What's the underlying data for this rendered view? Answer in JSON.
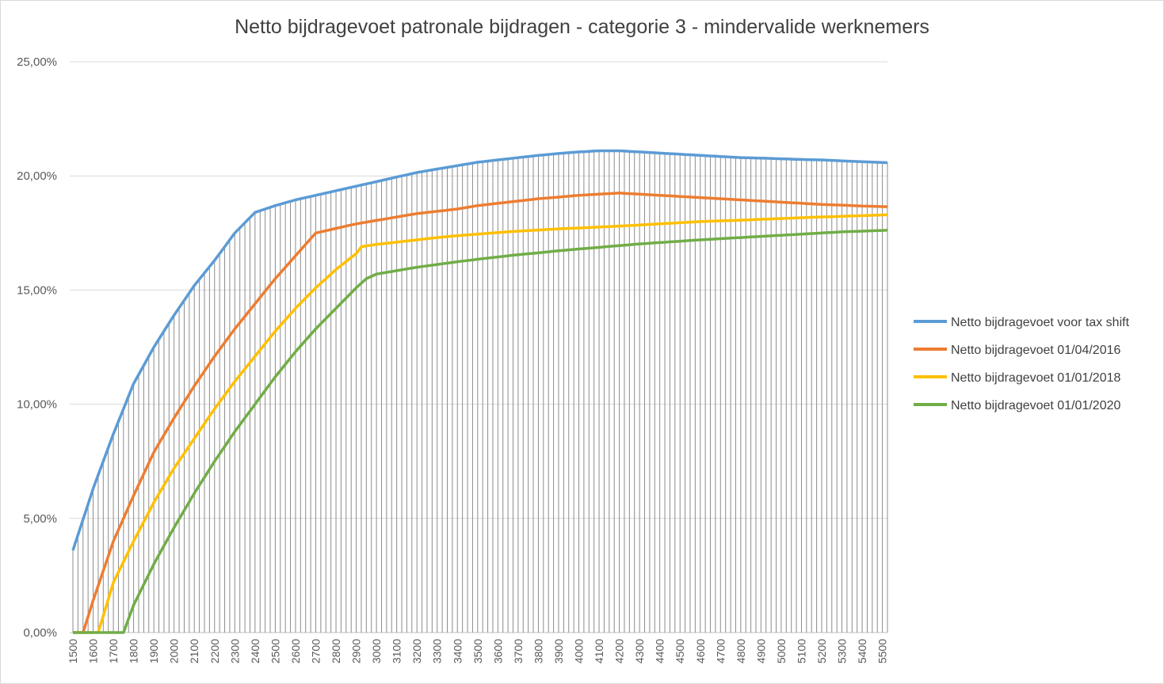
{
  "chart_data": {
    "type": "line",
    "title": "Netto bijdragevoet patronale bijdragen - categorie 3 - mindervalide werknemers",
    "xlabel": "",
    "ylabel": "",
    "x_start": 1500,
    "x_end": 5525,
    "x_step": 25,
    "x_tick_start": 1500,
    "x_tick_step": 100,
    "ylim": [
      0,
      25
    ],
    "y_ticks": [
      "0,00%",
      "5,00%",
      "10,00%",
      "15,00%",
      "20,00%",
      "25,00%"
    ],
    "y_tick_values": [
      0,
      5,
      10,
      15,
      20,
      25
    ],
    "grid": "horizontal",
    "drop_lines": true,
    "legend_position": "right",
    "series": [
      {
        "name": "Netto bijdragevoet voor tax shift",
        "color": "#5b9bd5",
        "points": [
          [
            1500,
            3.6
          ],
          [
            1600,
            6.3
          ],
          [
            1700,
            8.7
          ],
          [
            1800,
            10.9
          ],
          [
            1900,
            12.5
          ],
          [
            2000,
            13.9
          ],
          [
            2100,
            15.2
          ],
          [
            2200,
            16.3
          ],
          [
            2300,
            17.5
          ],
          [
            2400,
            18.4
          ],
          [
            2500,
            18.7
          ],
          [
            2600,
            18.95
          ],
          [
            2700,
            19.15
          ],
          [
            2800,
            19.35
          ],
          [
            2900,
            19.55
          ],
          [
            3000,
            19.75
          ],
          [
            3100,
            19.95
          ],
          [
            3200,
            20.15
          ],
          [
            3300,
            20.3
          ],
          [
            3400,
            20.45
          ],
          [
            3500,
            20.6
          ],
          [
            3600,
            20.7
          ],
          [
            3700,
            20.8
          ],
          [
            3800,
            20.9
          ],
          [
            3900,
            20.98
          ],
          [
            4000,
            21.05
          ],
          [
            4100,
            21.1
          ],
          [
            4200,
            21.1
          ],
          [
            4300,
            21.05
          ],
          [
            4400,
            21.0
          ],
          [
            4500,
            20.95
          ],
          [
            4600,
            20.9
          ],
          [
            4700,
            20.85
          ],
          [
            4800,
            20.8
          ],
          [
            4900,
            20.78
          ],
          [
            5000,
            20.75
          ],
          [
            5100,
            20.72
          ],
          [
            5200,
            20.7
          ],
          [
            5300,
            20.66
          ],
          [
            5400,
            20.62
          ],
          [
            5525,
            20.58
          ]
        ]
      },
      {
        "name": "Netto bijdragevoet 01/04/2016",
        "color": "#ed7d31",
        "points": [
          [
            1500,
            0
          ],
          [
            1550,
            0
          ],
          [
            1600,
            1.4
          ],
          [
            1700,
            4.0
          ],
          [
            1800,
            6.0
          ],
          [
            1900,
            7.9
          ],
          [
            2000,
            9.4
          ],
          [
            2100,
            10.8
          ],
          [
            2200,
            12.1
          ],
          [
            2300,
            13.3
          ],
          [
            2400,
            14.4
          ],
          [
            2500,
            15.5
          ],
          [
            2600,
            16.5
          ],
          [
            2700,
            17.5
          ],
          [
            2800,
            17.7
          ],
          [
            2900,
            17.9
          ],
          [
            3000,
            18.05
          ],
          [
            3100,
            18.2
          ],
          [
            3200,
            18.35
          ],
          [
            3300,
            18.45
          ],
          [
            3400,
            18.55
          ],
          [
            3500,
            18.7
          ],
          [
            3600,
            18.8
          ],
          [
            3700,
            18.9
          ],
          [
            3800,
            19.0
          ],
          [
            3900,
            19.07
          ],
          [
            4000,
            19.15
          ],
          [
            4100,
            19.2
          ],
          [
            4200,
            19.25
          ],
          [
            4300,
            19.2
          ],
          [
            4400,
            19.15
          ],
          [
            4500,
            19.1
          ],
          [
            4600,
            19.05
          ],
          [
            4700,
            19.0
          ],
          [
            4800,
            18.95
          ],
          [
            4900,
            18.9
          ],
          [
            5000,
            18.85
          ],
          [
            5100,
            18.8
          ],
          [
            5200,
            18.75
          ],
          [
            5300,
            18.72
          ],
          [
            5400,
            18.68
          ],
          [
            5525,
            18.65
          ]
        ]
      },
      {
        "name": "Netto bijdragevoet 01/01/2018",
        "color": "#ffc000",
        "points": [
          [
            1500,
            0
          ],
          [
            1625,
            0
          ],
          [
            1700,
            2.2
          ],
          [
            1800,
            4.0
          ],
          [
            1900,
            5.7
          ],
          [
            2000,
            7.2
          ],
          [
            2100,
            8.5
          ],
          [
            2200,
            9.8
          ],
          [
            2300,
            11.0
          ],
          [
            2400,
            12.1
          ],
          [
            2500,
            13.2
          ],
          [
            2600,
            14.2
          ],
          [
            2700,
            15.1
          ],
          [
            2800,
            15.9
          ],
          [
            2900,
            16.6
          ],
          [
            2925,
            16.9
          ],
          [
            3000,
            17.0
          ],
          [
            3100,
            17.1
          ],
          [
            3200,
            17.2
          ],
          [
            3300,
            17.3
          ],
          [
            3400,
            17.38
          ],
          [
            3500,
            17.45
          ],
          [
            3600,
            17.52
          ],
          [
            3700,
            17.58
          ],
          [
            3800,
            17.63
          ],
          [
            3900,
            17.68
          ],
          [
            4000,
            17.72
          ],
          [
            4100,
            17.76
          ],
          [
            4200,
            17.8
          ],
          [
            4300,
            17.85
          ],
          [
            4400,
            17.9
          ],
          [
            4500,
            17.95
          ],
          [
            4600,
            18.0
          ],
          [
            4700,
            18.03
          ],
          [
            4800,
            18.06
          ],
          [
            4900,
            18.1
          ],
          [
            5000,
            18.13
          ],
          [
            5100,
            18.17
          ],
          [
            5200,
            18.2
          ],
          [
            5300,
            18.23
          ],
          [
            5400,
            18.26
          ],
          [
            5525,
            18.3
          ]
        ]
      },
      {
        "name": "Netto bijdragevoet 01/01/2020",
        "color": "#70ad47",
        "points": [
          [
            1500,
            0
          ],
          [
            1750,
            0
          ],
          [
            1800,
            1.2
          ],
          [
            1900,
            3.0
          ],
          [
            2000,
            4.6
          ],
          [
            2100,
            6.1
          ],
          [
            2200,
            7.5
          ],
          [
            2300,
            8.8
          ],
          [
            2400,
            10.0
          ],
          [
            2500,
            11.2
          ],
          [
            2600,
            12.3
          ],
          [
            2700,
            13.3
          ],
          [
            2800,
            14.2
          ],
          [
            2900,
            15.1
          ],
          [
            2950,
            15.5
          ],
          [
            3000,
            15.7
          ],
          [
            3100,
            15.85
          ],
          [
            3200,
            16.0
          ],
          [
            3300,
            16.12
          ],
          [
            3400,
            16.24
          ],
          [
            3500,
            16.35
          ],
          [
            3600,
            16.45
          ],
          [
            3700,
            16.55
          ],
          [
            3800,
            16.63
          ],
          [
            3900,
            16.72
          ],
          [
            4000,
            16.8
          ],
          [
            4100,
            16.87
          ],
          [
            4200,
            16.95
          ],
          [
            4300,
            17.02
          ],
          [
            4400,
            17.08
          ],
          [
            4500,
            17.14
          ],
          [
            4600,
            17.2
          ],
          [
            4700,
            17.25
          ],
          [
            4800,
            17.3
          ],
          [
            4900,
            17.35
          ],
          [
            5000,
            17.4
          ],
          [
            5100,
            17.45
          ],
          [
            5200,
            17.5
          ],
          [
            5300,
            17.55
          ],
          [
            5400,
            17.58
          ],
          [
            5525,
            17.62
          ]
        ]
      }
    ]
  }
}
